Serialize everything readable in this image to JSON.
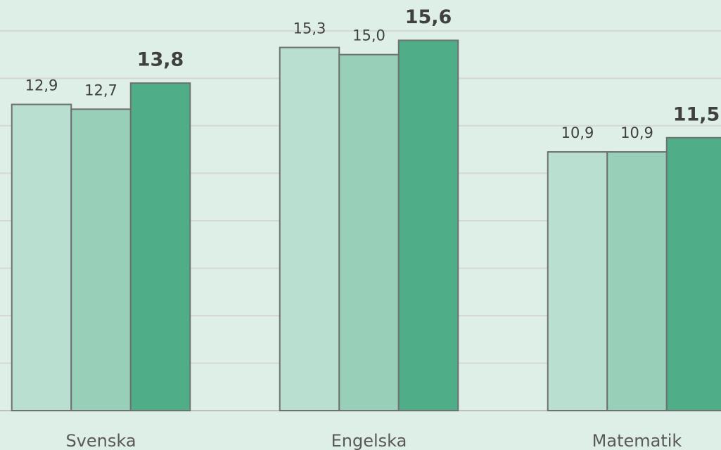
{
  "chart_data": {
    "type": "bar",
    "categories": [
      "Svenska",
      "Engelska",
      "Matematik"
    ],
    "series": [
      {
        "color": "#b9dfd1",
        "values": [
          12.9,
          15.3,
          10.9
        ],
        "value_labels": [
          "12,9",
          "15,3",
          "10,9"
        ]
      },
      {
        "color": "#97cfb8",
        "values": [
          12.7,
          15.0,
          10.9
        ],
        "value_labels": [
          "12,7",
          "15,0",
          "10,9"
        ]
      },
      {
        "color": "#4fad88",
        "values": [
          13.8,
          15.6,
          11.5
        ],
        "value_labels": [
          "13,8",
          "15,6",
          "11,5"
        ],
        "label_weight": "bold"
      }
    ],
    "ylim": [
      0,
      17.3
    ],
    "yticks": [
      0,
      2,
      4,
      6,
      8,
      10,
      12,
      14,
      16
    ],
    "grid": true
  }
}
